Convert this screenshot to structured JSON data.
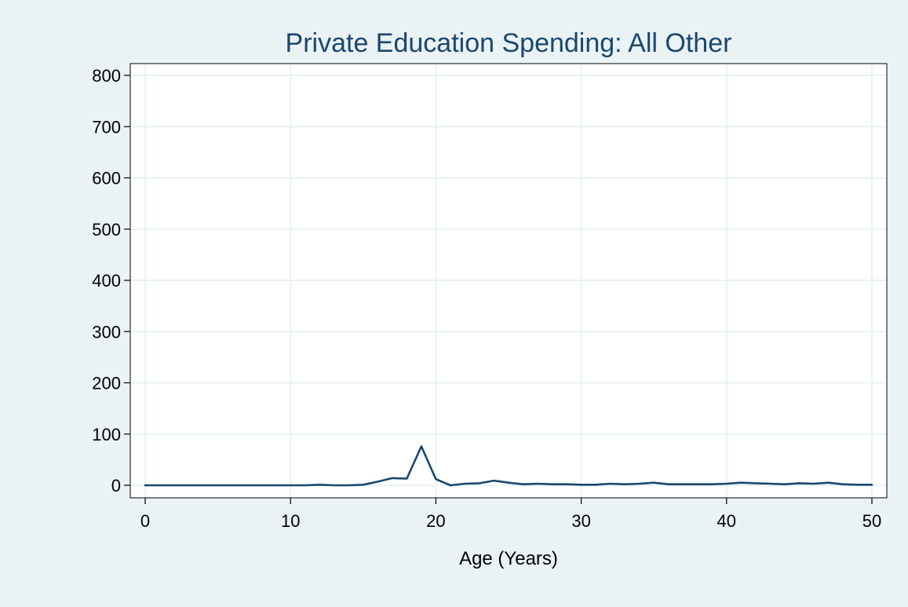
{
  "chart_data": {
    "type": "line",
    "title": "Private Education Spending: All Other",
    "xlabel": "Age (Years)",
    "ylabel": "",
    "xlim": [
      0,
      50
    ],
    "ylim": [
      0,
      800
    ],
    "xticks": [
      0,
      10,
      20,
      30,
      40,
      50
    ],
    "yticks": [
      0,
      100,
      200,
      300,
      400,
      500,
      600,
      700,
      800
    ],
    "grid": true,
    "legend": "none",
    "series": [
      {
        "x": [
          0,
          1,
          2,
          3,
          4,
          5,
          6,
          7,
          8,
          9,
          10,
          11,
          12,
          13,
          14,
          15,
          16,
          17,
          18,
          19,
          20,
          21,
          22,
          23,
          24,
          25,
          26,
          27,
          28,
          29,
          30,
          31,
          32,
          33,
          34,
          35,
          36,
          37,
          38,
          39,
          40,
          41,
          42,
          43,
          44,
          45,
          46,
          47,
          48,
          49,
          50
        ],
        "values": [
          0,
          0,
          0,
          0,
          0,
          0,
          0,
          0,
          0,
          0,
          0,
          0,
          1,
          0,
          0,
          1,
          7,
          14,
          13,
          76,
          12,
          0,
          3,
          4,
          9,
          5,
          2,
          3,
          2,
          2,
          1,
          1,
          3,
          2,
          3,
          5,
          2,
          2,
          2,
          2,
          3,
          5,
          4,
          3,
          2,
          4,
          3,
          5,
          2,
          1,
          1
        ]
      }
    ]
  },
  "colors": {
    "background": "#eaf2f3",
    "plot_background": "#ffffff",
    "grid": "#eaf2f3",
    "axis": "#000000",
    "line": "#1a476f",
    "title": "#1a476f",
    "text": "#000000"
  }
}
